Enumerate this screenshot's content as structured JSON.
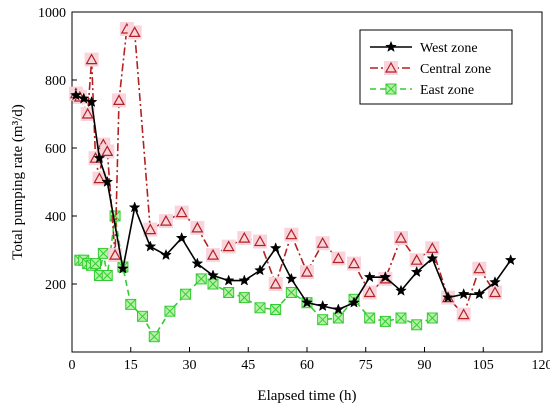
{
  "chart_data": {
    "type": "line",
    "xlabel": "Elapsed time (h)",
    "ylabel": "Total pumping rate (m³/d)",
    "xlim": [
      0,
      120
    ],
    "ylim": [
      0,
      1000
    ],
    "xticks": [
      0,
      15,
      30,
      45,
      60,
      75,
      90,
      105,
      120
    ],
    "yticks": [
      200,
      400,
      600,
      800,
      1000
    ],
    "grid": false,
    "legend_position": "top-right",
    "series": [
      {
        "name": "West zone",
        "color": "#000000",
        "line_style": "solid",
        "marker": "star",
        "x": [
          1,
          3,
          5,
          7,
          9,
          13,
          16,
          20,
          24,
          28,
          32,
          36,
          40,
          44,
          48,
          52,
          56,
          60,
          64,
          68,
          72,
          76,
          80,
          84,
          88,
          92,
          96,
          100,
          104,
          108,
          112
        ],
        "y": [
          755,
          745,
          735,
          570,
          500,
          245,
          425,
          310,
          285,
          335,
          260,
          225,
          210,
          210,
          240,
          305,
          215,
          145,
          135,
          125,
          145,
          220,
          220,
          180,
          235,
          275,
          160,
          170,
          170,
          205,
          270
        ]
      },
      {
        "name": "Central zone",
        "color": "#b22222",
        "line_style": "dash-dot",
        "marker": "triangle",
        "x": [
          1,
          2,
          4,
          5,
          6,
          7,
          8,
          9,
          11,
          12,
          14,
          16,
          20,
          24,
          28,
          32,
          36,
          40,
          44,
          48,
          52,
          56,
          60,
          64,
          68,
          72,
          76,
          80,
          84,
          88,
          92,
          96,
          100,
          104,
          108
        ],
        "y": [
          760,
          750,
          700,
          860,
          570,
          510,
          610,
          590,
          285,
          740,
          950,
          940,
          360,
          385,
          410,
          365,
          285,
          310,
          335,
          325,
          200,
          345,
          235,
          320,
          275,
          260,
          175,
          215,
          335,
          270,
          305,
          160,
          110,
          245,
          175
        ]
      },
      {
        "name": "East zone",
        "color": "#33cc33",
        "line_style": "dashed",
        "marker": "square-x",
        "x": [
          2,
          3,
          4,
          5,
          6,
          7,
          8,
          9,
          11,
          13,
          15,
          18,
          21,
          25,
          29,
          33,
          36,
          40,
          44,
          48,
          52,
          56,
          60,
          64,
          68,
          72,
          76,
          80,
          84,
          88,
          92
        ],
        "y": [
          270,
          270,
          260,
          255,
          260,
          225,
          290,
          225,
          400,
          250,
          140,
          105,
          45,
          120,
          170,
          215,
          200,
          175,
          160,
          130,
          125,
          175,
          145,
          95,
          100,
          155,
          100,
          90,
          100,
          80,
          100
        ]
      }
    ]
  }
}
